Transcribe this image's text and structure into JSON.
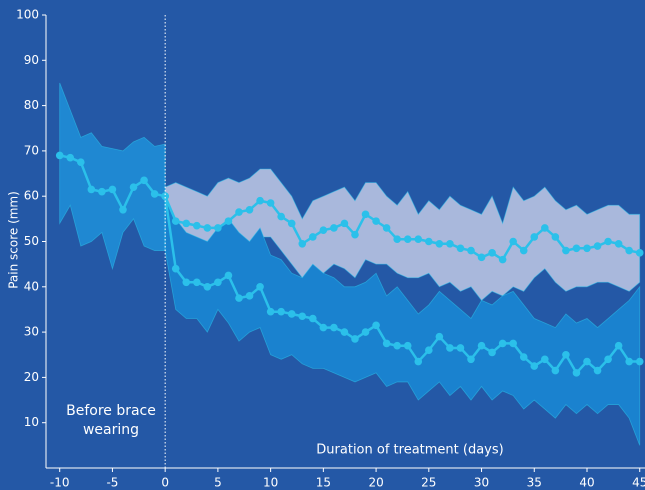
{
  "chart_data": {
    "type": "line",
    "ylabel": "Pain score (mm)",
    "xlabel": "Duration of treatment (days)",
    "annotation": [
      "Before brace",
      "wearing"
    ],
    "vline": 0,
    "xlim": [
      -11.3,
      45.5
    ],
    "ylim": [
      0,
      100
    ],
    "xticks": [
      -10,
      -5,
      0,
      5,
      10,
      15,
      20,
      25,
      30,
      35,
      40,
      45
    ],
    "yticks": [
      10,
      20,
      30,
      40,
      50,
      60,
      70,
      80,
      90,
      100
    ],
    "grid": false,
    "series": [
      {
        "color": "#2bc0ea",
        "band_color": "#1f88d2",
        "x": [
          -10,
          -9,
          -8,
          -7,
          -6,
          -5,
          -4,
          -3,
          -2,
          -1,
          0
        ],
        "values": [
          69,
          68.5,
          67.5,
          61.5,
          61,
          61.5,
          57,
          62,
          63.5,
          60.5,
          60
        ],
        "band_upper": [
          85,
          79,
          73,
          74,
          71,
          70.5,
          70,
          72,
          73,
          71,
          71.5
        ],
        "band_lower": [
          54,
          58,
          49,
          50,
          52,
          44,
          52,
          55,
          49,
          48,
          48
        ]
      },
      {
        "color": "#2bc0ea",
        "band_color": "#a9b8dc",
        "x": [
          0,
          1,
          2,
          3,
          4,
          5,
          6,
          7,
          8,
          9,
          10,
          11,
          12,
          13,
          14,
          15,
          16,
          17,
          18,
          19,
          20,
          21,
          22,
          23,
          24,
          25,
          26,
          27,
          28,
          29,
          30,
          31,
          32,
          33,
          34,
          35,
          36,
          37,
          38,
          39,
          40,
          41,
          42,
          43,
          44,
          45
        ],
        "values": [
          60,
          54.5,
          54,
          53.5,
          53,
          53,
          54.5,
          56.5,
          57,
          59,
          58.5,
          55.5,
          54,
          49.5,
          51,
          52.5,
          53,
          54,
          51.5,
          56,
          54.5,
          53,
          50.5,
          50.5,
          50.5,
          50,
          49.5,
          49.5,
          48.5,
          48,
          46.5,
          47.5,
          46,
          50,
          48,
          51,
          53,
          51,
          48,
          48.5,
          48.5,
          49,
          50,
          49.5,
          48,
          47.5
        ],
        "band_upper": [
          62,
          63,
          62,
          61,
          60,
          63,
          64,
          63,
          64,
          66,
          66,
          63,
          60,
          55,
          59,
          60,
          61,
          62,
          59,
          63,
          63,
          60,
          58,
          61,
          56,
          59,
          57,
          60,
          58,
          57,
          56,
          60,
          54,
          62,
          59,
          60,
          62,
          59,
          57,
          58,
          56,
          57,
          58,
          58,
          56,
          56
        ],
        "band_lower": [
          48,
          50,
          49.5,
          49.5,
          50,
          47,
          45,
          48,
          49,
          51,
          51,
          48,
          45,
          42,
          40,
          43,
          45,
          44,
          42,
          46,
          45,
          45,
          43,
          42,
          42,
          43,
          40,
          41,
          39,
          40,
          37,
          39,
          38,
          40,
          39,
          42,
          44,
          41,
          39,
          40,
          40,
          41,
          41,
          40,
          39,
          41
        ]
      },
      {
        "color": "#2bc0ea",
        "band_color": "#1a82cf",
        "x": [
          0,
          1,
          2,
          3,
          4,
          5,
          6,
          7,
          8,
          9,
          10,
          11,
          12,
          13,
          14,
          15,
          16,
          17,
          18,
          19,
          20,
          21,
          22,
          23,
          24,
          25,
          26,
          27,
          28,
          29,
          30,
          31,
          32,
          33,
          34,
          35,
          36,
          37,
          38,
          39,
          40,
          41,
          42,
          43,
          44,
          45
        ],
        "values": [
          60,
          44,
          41,
          41,
          40,
          41,
          42.5,
          37.5,
          38,
          40,
          34.5,
          34.5,
          34,
          33.5,
          33,
          31,
          31,
          30,
          28.5,
          30,
          31.5,
          27.5,
          27,
          27,
          23.5,
          26,
          29,
          26.5,
          26.5,
          24,
          27,
          25.5,
          27.5,
          27.5,
          24.5,
          22.5,
          24,
          21.5,
          25,
          21,
          23.5,
          21.5,
          24,
          27,
          23.5,
          23.5
        ],
        "band_upper": [
          60,
          55,
          52,
          51,
          50,
          53,
          55,
          52,
          50,
          53,
          47,
          46,
          43,
          42,
          45,
          43,
          42,
          40,
          40,
          41,
          43,
          38,
          40,
          37,
          34,
          36,
          39,
          37,
          35,
          33,
          37,
          36,
          38,
          39,
          36,
          33,
          32,
          31,
          34,
          32,
          33,
          31,
          33,
          35,
          37,
          40
        ],
        "band_lower": [
          48,
          35,
          33,
          33,
          30,
          35,
          32,
          28,
          30,
          31,
          25,
          24,
          25,
          23,
          22,
          22,
          21,
          20,
          19,
          20,
          21,
          18,
          19,
          19,
          15,
          17,
          19,
          16,
          18,
          15,
          18,
          15,
          17,
          16,
          13,
          15,
          13,
          11,
          14,
          12,
          14,
          12,
          14,
          14,
          11,
          5
        ]
      }
    ]
  }
}
